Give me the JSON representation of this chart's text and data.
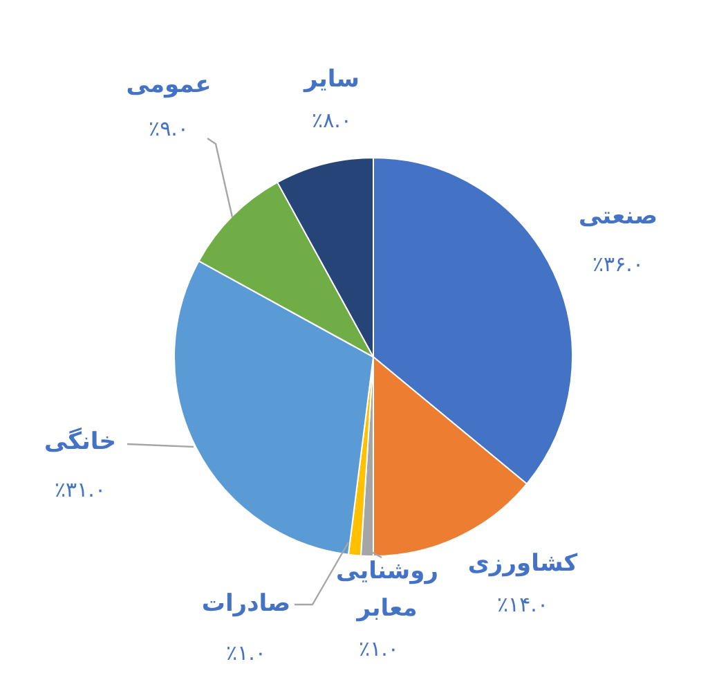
{
  "chart_data": {
    "type": "pie",
    "categories": [
      "صنعتی",
      "کشاورزی",
      "روشنایی معابر",
      "صادرات",
      "خانگی",
      "عمومی",
      "سایر"
    ],
    "values": [
      36,
      14,
      1,
      1,
      31,
      9,
      8
    ],
    "colors": [
      "#4472c4",
      "#ed7d31",
      "#a5a5a5",
      "#ffc000",
      "#5b9bd5",
      "#70ad47",
      "#264478"
    ],
    "value_labels": [
      "٪۳۶.۰",
      "٪۱۴.۰",
      "٪۱.۰",
      "٪۱.۰",
      "٪۳۱.۰",
      "٪۹.۰",
      "٪۸.۰"
    ]
  }
}
